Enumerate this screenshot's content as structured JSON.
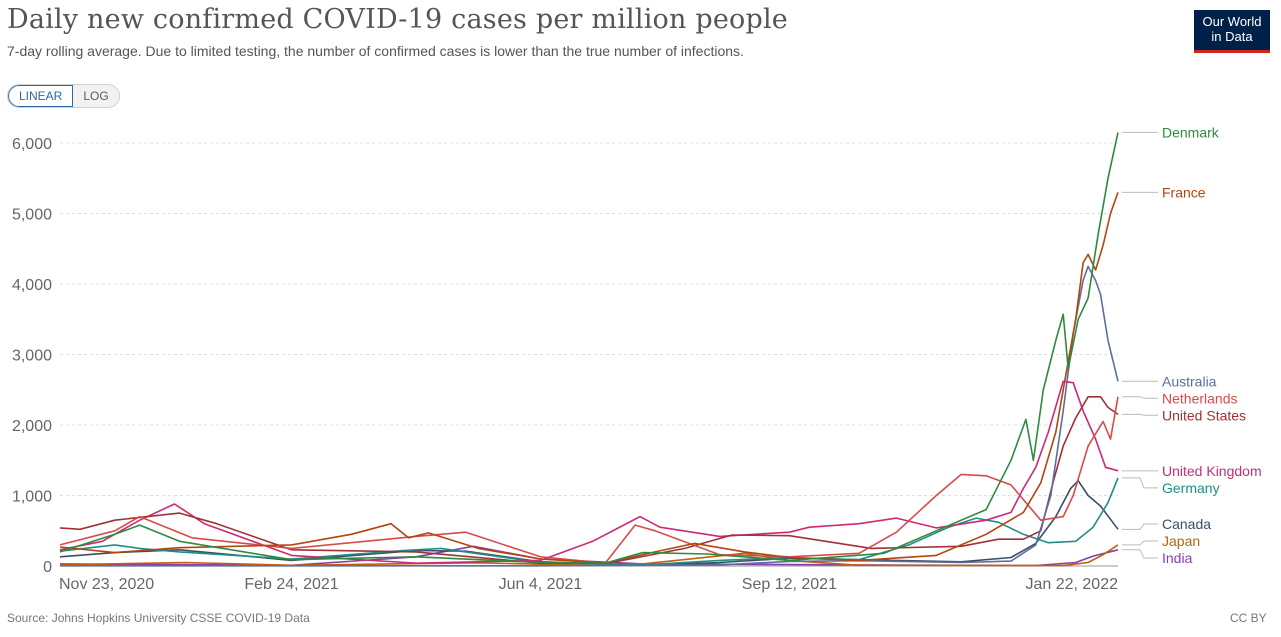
{
  "header": {
    "title": "Daily new confirmed COVID-19 cases per million people",
    "subtitle": "7-day rolling average. Due to limited testing, the number of confirmed cases is lower than the true number of infections.",
    "logo_line1": "Our World",
    "logo_line2": "in Data"
  },
  "controls": {
    "linear_label": "LINEAR",
    "log_label": "LOG",
    "active": "linear"
  },
  "footer": {
    "source": "Source: Johns Hopkins University CSSE COVID-19 Data",
    "license": "CC BY"
  },
  "colors": {
    "grid": "#dddddd",
    "axis_text": "#666666",
    "baseline": "#999999"
  },
  "chart_data": {
    "type": "line",
    "title": "Daily new confirmed COVID-19 cases per million people",
    "xlabel": "",
    "ylabel": "",
    "ylim": [
      0,
      6000
    ],
    "yticks": [
      0,
      1000,
      2000,
      3000,
      4000,
      5000,
      6000
    ],
    "ytick_labels": [
      "0",
      "1,000",
      "2,000",
      "3,000",
      "4,000",
      "5,000",
      "6,000"
    ],
    "x_range": [
      "2020-11-23",
      "2022-01-22"
    ],
    "x_ticks": [
      "2020-11-23",
      "2021-02-24",
      "2021-06-04",
      "2021-09-12",
      "2022-01-22"
    ],
    "x_tick_labels": [
      "Nov 23, 2020",
      "Feb 24, 2021",
      "Jun 4, 2021",
      "Sep 12, 2021",
      "Jan 22, 2022"
    ],
    "grid": "horizontal",
    "legend": "right end labels",
    "series": [
      {
        "name": "Denmark",
        "color": "#2e8b3e",
        "points": [
          [
            "2020-11-23",
            200
          ],
          [
            "2020-12-15",
            450
          ],
          [
            "2020-12-25",
            580
          ],
          [
            "2021-01-10",
            350
          ],
          [
            "2021-02-24",
            90
          ],
          [
            "2021-04-15",
            130
          ],
          [
            "2021-06-04",
            50
          ],
          [
            "2021-06-30",
            40
          ],
          [
            "2021-07-15",
            190
          ],
          [
            "2021-08-10",
            170
          ],
          [
            "2021-09-12",
            80
          ],
          [
            "2021-10-20",
            180
          ],
          [
            "2021-11-10",
            500
          ],
          [
            "2021-11-30",
            800
          ],
          [
            "2021-12-10",
            1500
          ],
          [
            "2021-12-16",
            2080
          ],
          [
            "2021-12-19",
            1500
          ],
          [
            "2021-12-23",
            2500
          ],
          [
            "2021-12-28",
            3200
          ],
          [
            "2021-12-31",
            3570
          ],
          [
            "2022-01-02",
            2800
          ],
          [
            "2022-01-06",
            3500
          ],
          [
            "2022-01-10",
            3800
          ],
          [
            "2022-01-14",
            4700
          ],
          [
            "2022-01-18",
            5500
          ],
          [
            "2022-01-22",
            6150
          ]
        ]
      },
      {
        "name": "France",
        "color": "#b3450f",
        "points": [
          [
            "2020-11-23",
            270
          ],
          [
            "2020-12-15",
            190
          ],
          [
            "2021-01-10",
            260
          ],
          [
            "2021-02-24",
            300
          ],
          [
            "2021-03-20",
            450
          ],
          [
            "2021-04-05",
            600
          ],
          [
            "2021-04-12",
            400
          ],
          [
            "2021-04-20",
            470
          ],
          [
            "2021-05-10",
            250
          ],
          [
            "2021-06-04",
            100
          ],
          [
            "2021-06-30",
            40
          ],
          [
            "2021-07-20",
            200
          ],
          [
            "2021-08-05",
            320
          ],
          [
            "2021-08-25",
            200
          ],
          [
            "2021-09-12",
            120
          ],
          [
            "2021-10-10",
            80
          ],
          [
            "2021-11-10",
            150
          ],
          [
            "2021-11-30",
            450
          ],
          [
            "2021-12-15",
            760
          ],
          [
            "2021-12-22",
            1180
          ],
          [
            "2021-12-28",
            1900
          ],
          [
            "2022-01-01",
            2700
          ],
          [
            "2022-01-05",
            3500
          ],
          [
            "2022-01-08",
            4300
          ],
          [
            "2022-01-10",
            4420
          ],
          [
            "2022-01-13",
            4200
          ],
          [
            "2022-01-16",
            4550
          ],
          [
            "2022-01-19",
            5000
          ],
          [
            "2022-01-22",
            5300
          ]
        ]
      },
      {
        "name": "Australia",
        "color": "#5b6f9e",
        "points": [
          [
            "2020-11-23",
            3
          ],
          [
            "2021-06-04",
            3
          ],
          [
            "2021-08-15",
            15
          ],
          [
            "2021-09-12",
            65
          ],
          [
            "2021-10-10",
            75
          ],
          [
            "2021-11-20",
            50
          ],
          [
            "2021-12-10",
            70
          ],
          [
            "2021-12-20",
            300
          ],
          [
            "2021-12-26",
            1000
          ],
          [
            "2021-12-31",
            2200
          ],
          [
            "2022-01-04",
            3300
          ],
          [
            "2022-01-08",
            4050
          ],
          [
            "2022-01-10",
            4250
          ],
          [
            "2022-01-13",
            4050
          ],
          [
            "2022-01-15",
            3850
          ],
          [
            "2022-01-18",
            3200
          ],
          [
            "2022-01-22",
            2620
          ]
        ]
      },
      {
        "name": "Netherlands",
        "color": "#d84b4b",
        "points": [
          [
            "2020-11-23",
            300
          ],
          [
            "2020-12-15",
            500
          ],
          [
            "2020-12-25",
            700
          ],
          [
            "2021-01-15",
            400
          ],
          [
            "2021-02-24",
            250
          ],
          [
            "2021-04-15",
            420
          ],
          [
            "2021-05-05",
            480
          ],
          [
            "2021-06-04",
            130
          ],
          [
            "2021-06-30",
            40
          ],
          [
            "2021-07-12",
            580
          ],
          [
            "2021-07-20",
            500
          ],
          [
            "2021-08-15",
            160
          ],
          [
            "2021-09-12",
            130
          ],
          [
            "2021-10-10",
            180
          ],
          [
            "2021-10-25",
            480
          ],
          [
            "2021-11-10",
            1000
          ],
          [
            "2021-11-20",
            1300
          ],
          [
            "2021-11-30",
            1280
          ],
          [
            "2021-12-10",
            1150
          ],
          [
            "2021-12-22",
            650
          ],
          [
            "2021-12-31",
            700
          ],
          [
            "2022-01-04",
            1000
          ],
          [
            "2022-01-10",
            1700
          ],
          [
            "2022-01-16",
            2050
          ],
          [
            "2022-01-19",
            1800
          ],
          [
            "2022-01-22",
            2400
          ]
        ]
      },
      {
        "name": "United States",
        "color": "#a13233",
        "points": [
          [
            "2020-11-23",
            540
          ],
          [
            "2020-12-01",
            520
          ],
          [
            "2020-12-15",
            650
          ],
          [
            "2021-01-10",
            750
          ],
          [
            "2021-01-25",
            600
          ],
          [
            "2021-02-24",
            230
          ],
          [
            "2021-04-15",
            200
          ],
          [
            "2021-06-04",
            40
          ],
          [
            "2021-07-01",
            40
          ],
          [
            "2021-08-01",
            250
          ],
          [
            "2021-08-20",
            440
          ],
          [
            "2021-09-12",
            430
          ],
          [
            "2021-10-15",
            250
          ],
          [
            "2021-11-20",
            280
          ],
          [
            "2021-12-05",
            380
          ],
          [
            "2021-12-15",
            380
          ],
          [
            "2021-12-22",
            500
          ],
          [
            "2021-12-27",
            1200
          ],
          [
            "2021-12-31",
            1700
          ],
          [
            "2022-01-05",
            2100
          ],
          [
            "2022-01-10",
            2400
          ],
          [
            "2022-01-15",
            2400
          ],
          [
            "2022-01-18",
            2250
          ],
          [
            "2022-01-22",
            2150
          ]
        ]
      },
      {
        "name": "United Kingdom",
        "color": "#cc2a74",
        "points": [
          [
            "2020-11-23",
            230
          ],
          [
            "2020-12-10",
            350
          ],
          [
            "2020-12-25",
            650
          ],
          [
            "2021-01-08",
            880
          ],
          [
            "2021-01-20",
            600
          ],
          [
            "2021-02-24",
            150
          ],
          [
            "2021-04-15",
            40
          ],
          [
            "2021-06-04",
            80
          ],
          [
            "2021-06-25",
            350
          ],
          [
            "2021-07-14",
            700
          ],
          [
            "2021-07-22",
            550
          ],
          [
            "2021-08-15",
            420
          ],
          [
            "2021-09-12",
            480
          ],
          [
            "2021-09-20",
            550
          ],
          [
            "2021-10-10",
            600
          ],
          [
            "2021-10-25",
            680
          ],
          [
            "2021-11-10",
            540
          ],
          [
            "2021-11-30",
            650
          ],
          [
            "2021-12-10",
            760
          ],
          [
            "2021-12-15",
            1100
          ],
          [
            "2021-12-20",
            1400
          ],
          [
            "2021-12-25",
            1900
          ],
          [
            "2021-12-31",
            2620
          ],
          [
            "2022-01-04",
            2600
          ],
          [
            "2022-01-08",
            2200
          ],
          [
            "2022-01-13",
            1800
          ],
          [
            "2022-01-17",
            1400
          ],
          [
            "2022-01-22",
            1350
          ]
        ]
      },
      {
        "name": "Germany",
        "color": "#1f8f86",
        "points": [
          [
            "2020-11-23",
            210
          ],
          [
            "2020-12-15",
            300
          ],
          [
            "2020-12-25",
            250
          ],
          [
            "2021-01-10",
            200
          ],
          [
            "2021-02-24",
            100
          ],
          [
            "2021-04-10",
            220
          ],
          [
            "2021-04-25",
            250
          ],
          [
            "2021-06-04",
            50
          ],
          [
            "2021-07-15",
            15
          ],
          [
            "2021-08-15",
            80
          ],
          [
            "2021-09-12",
            120
          ],
          [
            "2021-10-10",
            90
          ],
          [
            "2021-10-30",
            300
          ],
          [
            "2021-11-15",
            550
          ],
          [
            "2021-11-26",
            680
          ],
          [
            "2021-12-05",
            620
          ],
          [
            "2021-12-15",
            450
          ],
          [
            "2021-12-25",
            330
          ],
          [
            "2022-01-05",
            350
          ],
          [
            "2022-01-12",
            550
          ],
          [
            "2022-01-18",
            900
          ],
          [
            "2022-01-22",
            1250
          ]
        ]
      },
      {
        "name": "Canada",
        "color": "#3c4e66",
        "points": [
          [
            "2020-11-23",
            130
          ],
          [
            "2020-12-15",
            190
          ],
          [
            "2021-01-10",
            230
          ],
          [
            "2021-02-24",
            80
          ],
          [
            "2021-04-15",
            220
          ],
          [
            "2021-05-05",
            210
          ],
          [
            "2021-06-04",
            60
          ],
          [
            "2021-07-15",
            10
          ],
          [
            "2021-08-15",
            50
          ],
          [
            "2021-09-12",
            110
          ],
          [
            "2021-10-10",
            90
          ],
          [
            "2021-11-20",
            60
          ],
          [
            "2021-12-10",
            120
          ],
          [
            "2021-12-20",
            320
          ],
          [
            "2021-12-28",
            700
          ],
          [
            "2022-01-03",
            1100
          ],
          [
            "2022-01-06",
            1210
          ],
          [
            "2022-01-10",
            1000
          ],
          [
            "2022-01-15",
            850
          ],
          [
            "2022-01-22",
            520
          ]
        ]
      },
      {
        "name": "Japan",
        "color": "#c15f0e",
        "points": [
          [
            "2020-11-23",
            15
          ],
          [
            "2021-01-12",
            50
          ],
          [
            "2021-02-24",
            10
          ],
          [
            "2021-05-10",
            45
          ],
          [
            "2021-06-04",
            25
          ],
          [
            "2021-07-15",
            30
          ],
          [
            "2021-08-25",
            180
          ],
          [
            "2021-09-12",
            80
          ],
          [
            "2021-10-10",
            10
          ],
          [
            "2021-12-31",
            5
          ],
          [
            "2022-01-10",
            50
          ],
          [
            "2022-01-16",
            160
          ],
          [
            "2022-01-22",
            300
          ]
        ]
      },
      {
        "name": "India",
        "color": "#883ea8",
        "points": [
          [
            "2020-11-23",
            30
          ],
          [
            "2021-02-24",
            10
          ],
          [
            "2021-04-15",
            130
          ],
          [
            "2021-05-08",
            280
          ],
          [
            "2021-06-04",
            100
          ],
          [
            "2021-07-15",
            30
          ],
          [
            "2021-09-12",
            20
          ],
          [
            "2021-12-20",
            6
          ],
          [
            "2022-01-05",
            50
          ],
          [
            "2022-01-12",
            140
          ],
          [
            "2022-01-22",
            230
          ]
        ]
      }
    ]
  }
}
